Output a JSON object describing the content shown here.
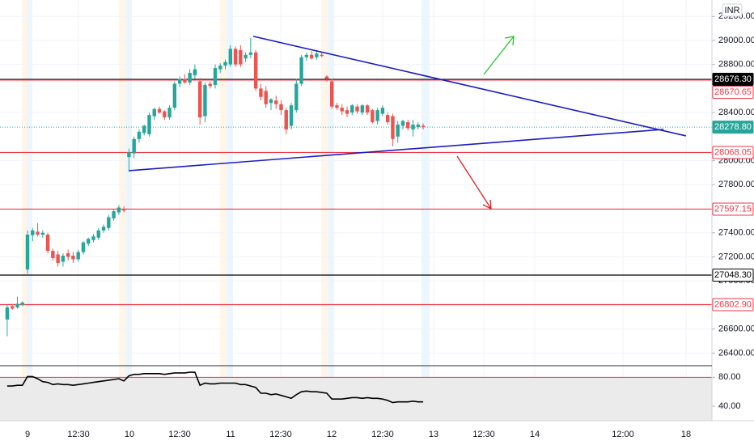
{
  "chart_data": [
    {
      "type": "candlestick",
      "currency": "INR",
      "up_color": "#26a69a",
      "down_color": "#ef5350",
      "ylim": [
        26295,
        29336
      ],
      "yticks": [
        {
          "value": 26400,
          "label": "26400.00"
        },
        {
          "value": 26600,
          "label": "26600.00"
        },
        {
          "value": 27000,
          "label": "27000.00"
        },
        {
          "value": 27200,
          "label": "27200.00"
        },
        {
          "value": 27400,
          "label": "27400.00"
        },
        {
          "value": 27800,
          "label": "27800.00"
        },
        {
          "value": 28000,
          "label": "28000.00"
        },
        {
          "value": 28400,
          "label": "28400.00"
        },
        {
          "value": 28800,
          "label": "28800.00"
        },
        {
          "value": 29000,
          "label": "29000.00"
        },
        {
          "value": 29200,
          "label": "29200.00"
        }
      ],
      "grid": true,
      "x_labels": [
        "9",
        "12:30",
        "10",
        "12:30",
        "11",
        "12:30",
        "12",
        "12:30",
        "13",
        "12:30",
        "14",
        "12:00",
        "18"
      ],
      "ohlc": [
        [
          26680,
          26800,
          26540,
          26780
        ],
        [
          26790,
          26810,
          26760,
          26770
        ],
        [
          26780,
          26870,
          26770,
          26810
        ],
        [
          26800,
          26830,
          26790,
          26820
        ],
        [
          27095,
          27420,
          27060,
          27385
        ],
        [
          27380,
          27440,
          27330,
          27420
        ],
        [
          27410,
          27480,
          27370,
          27385
        ],
        [
          27385,
          27420,
          27360,
          27400
        ],
        [
          27385,
          27400,
          27230,
          27250
        ],
        [
          27250,
          27270,
          27170,
          27190
        ],
        [
          27220,
          27250,
          27120,
          27150
        ],
        [
          27160,
          27230,
          27120,
          27210
        ],
        [
          27230,
          27260,
          27170,
          27200
        ],
        [
          27210,
          27240,
          27150,
          27180
        ],
        [
          27180,
          27260,
          27160,
          27240
        ],
        [
          27240,
          27330,
          27220,
          27320
        ],
        [
          27310,
          27360,
          27290,
          27350
        ],
        [
          27340,
          27390,
          27320,
          27370
        ],
        [
          27360,
          27440,
          27340,
          27420
        ],
        [
          27420,
          27470,
          27400,
          27450
        ],
        [
          27440,
          27550,
          27420,
          27530
        ],
        [
          27520,
          27600,
          27500,
          27580
        ],
        [
          27570,
          27630,
          27550,
          27610
        ],
        [
          27600,
          27620,
          27570,
          27585
        ],
        [
          28030,
          28100,
          27910,
          28070
        ],
        [
          28060,
          28200,
          28020,
          28180
        ],
        [
          28180,
          28260,
          28150,
          28240
        ],
        [
          28230,
          28300,
          28210,
          28290
        ],
        [
          28220,
          28400,
          28200,
          28380
        ],
        [
          28370,
          28440,
          28340,
          28430
        ],
        [
          28430,
          28450,
          28390,
          28400
        ],
        [
          28410,
          28420,
          28340,
          28360
        ],
        [
          28360,
          28460,
          28340,
          28440
        ],
        [
          28440,
          28660,
          28420,
          28640
        ],
        [
          28640,
          28700,
          28610,
          28680
        ],
        [
          28680,
          28720,
          28640,
          28650
        ],
        [
          28650,
          28760,
          28630,
          28730
        ],
        [
          28710,
          28800,
          28680,
          28760
        ],
        [
          28660,
          28690,
          28300,
          28360
        ],
        [
          28370,
          28650,
          28320,
          28630
        ],
        [
          28640,
          28660,
          28600,
          28620
        ],
        [
          28630,
          28800,
          28600,
          28770
        ],
        [
          28760,
          28810,
          28730,
          28790
        ],
        [
          28790,
          28840,
          28760,
          28820
        ],
        [
          28800,
          28960,
          28780,
          28930
        ],
        [
          28930,
          28950,
          28780,
          28800
        ],
        [
          28920,
          28960,
          28780,
          28800
        ],
        [
          28850,
          28900,
          28820,
          28880
        ],
        [
          28880,
          29020,
          28850,
          28900
        ],
        [
          28900,
          28920,
          28580,
          28600
        ],
        [
          28600,
          28640,
          28500,
          28530
        ],
        [
          28580,
          28620,
          28440,
          28470
        ],
        [
          28480,
          28520,
          28420,
          28510
        ],
        [
          28500,
          28540,
          28430,
          28470
        ],
        [
          28470,
          28500,
          28380,
          28420
        ],
        [
          28420,
          28440,
          28220,
          28260
        ],
        [
          28290,
          28480,
          28260,
          28460
        ],
        [
          28420,
          28680,
          28400,
          28640
        ],
        [
          28640,
          28880,
          28620,
          28860
        ],
        [
          28860,
          28900,
          28830,
          28880
        ],
        [
          28880,
          28910,
          28840,
          28850
        ],
        [
          28860,
          28920,
          28840,
          28890
        ],
        [
          28880,
          28900,
          28860,
          28870
        ],
        [
          28700,
          28710,
          28660,
          28680
        ],
        [
          28660,
          28680,
          28430,
          28450
        ],
        [
          28460,
          28480,
          28420,
          28440
        ],
        [
          28440,
          28470,
          28380,
          28410
        ],
        [
          28420,
          28450,
          28360,
          28390
        ],
        [
          28400,
          28470,
          28380,
          28460
        ],
        [
          28450,
          28470,
          28390,
          28410
        ],
        [
          28400,
          28470,
          28380,
          28460
        ],
        [
          28460,
          28470,
          28380,
          28400
        ],
        [
          28420,
          28430,
          28310,
          28320
        ],
        [
          28330,
          28440,
          28300,
          28420
        ],
        [
          28390,
          28460,
          28370,
          28440
        ],
        [
          28380,
          28400,
          28300,
          28320
        ],
        [
          28370,
          28390,
          28120,
          28180
        ],
        [
          28200,
          28330,
          28150,
          28300
        ],
        [
          28290,
          28340,
          28260,
          28330
        ],
        [
          28320,
          28340,
          28250,
          28270
        ],
        [
          28260,
          28340,
          28200,
          28300
        ],
        [
          28280,
          28320,
          28260,
          28300
        ],
        [
          28290,
          28310,
          28260,
          28279
        ]
      ],
      "levels": [
        {
          "value": 28676.3,
          "label": "28676.30",
          "color": "#000000",
          "filled": true,
          "dashed": false
        },
        {
          "value": 28670.65,
          "label": "28670.65",
          "color": "#f23645",
          "filled": false,
          "dashed": false
        },
        {
          "value": 28278.8,
          "label": "28278.80",
          "color": "#26a69a",
          "filled": true,
          "dashed": true
        },
        {
          "value": 28068.05,
          "label": "28068.05",
          "color": "#f23645",
          "filled": false,
          "dashed": false
        },
        {
          "value": 27597.15,
          "label": "27597.15",
          "color": "#f23645",
          "filled": false,
          "dashed": false
        },
        {
          "value": 27048.3,
          "label": "27048.30",
          "color": "#000000",
          "filled": false,
          "dashed": false
        },
        {
          "value": 26802.9,
          "label": "26802.90",
          "color": "#f23645",
          "filled": false,
          "dashed": false
        }
      ],
      "trendlines": [
        {
          "color": "#1c1cc8",
          "points": [
            [
              24,
              27917
            ],
            [
              129.4,
              28260
            ]
          ]
        },
        {
          "color": "#1c1cc8",
          "points": [
            [
              48.5,
              29034
            ],
            [
              133.8,
              28206
            ]
          ]
        }
      ]
    },
    {
      "type": "line",
      "color": "#000000",
      "ylim": [
        20,
        96
      ],
      "yticks": [
        {
          "value": 80,
          "label": "80.00"
        },
        {
          "value": 40,
          "label": "40.00"
        }
      ],
      "band": [
        20,
        80
      ],
      "values": [
        68,
        68,
        69,
        69,
        81,
        81,
        78,
        74,
        73,
        70,
        71,
        70,
        70,
        69,
        70,
        71,
        72,
        73,
        74,
        75,
        76,
        77,
        78,
        75,
        82,
        84,
        84,
        85,
        85,
        85,
        85,
        84,
        85,
        86,
        86,
        86,
        87,
        87,
        69,
        72,
        71,
        71,
        72,
        72,
        72,
        72,
        70,
        70,
        68,
        66,
        58,
        58,
        56,
        57,
        55,
        53,
        51,
        56,
        60,
        61,
        60,
        60,
        59,
        58,
        50,
        50,
        50,
        51,
        52,
        52,
        51,
        52,
        51,
        51,
        50,
        48,
        45,
        46,
        46,
        46,
        47,
        46,
        46
      ]
    }
  ]
}
